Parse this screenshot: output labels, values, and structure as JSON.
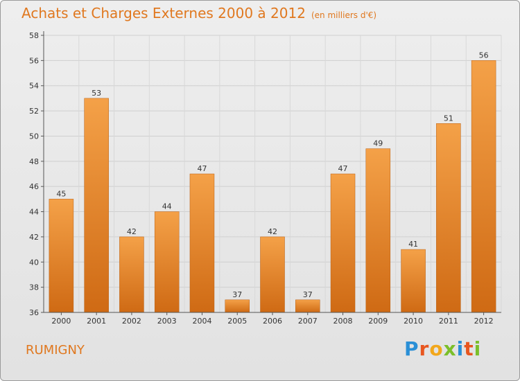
{
  "title": "Achats et Charges Externes 2000 à 2012",
  "subtitle": "(en milliers d'€)",
  "commune": "RUMIGNY",
  "brand": {
    "letters": [
      "P",
      "r",
      "o",
      "x",
      "i",
      "t",
      "i"
    ],
    "colors": [
      "#2a8fd6",
      "#e8561f",
      "#f2a71b",
      "#7bbf2a",
      "#2a8fd6",
      "#e8561f",
      "#7bbf2a"
    ]
  },
  "chart_data": {
    "type": "bar",
    "categories": [
      "2000",
      "2001",
      "2002",
      "2003",
      "2004",
      "2005",
      "2006",
      "2007",
      "2008",
      "2009",
      "2010",
      "2011",
      "2012"
    ],
    "values": [
      45,
      53,
      42,
      44,
      47,
      37,
      42,
      37,
      47,
      49,
      41,
      51,
      56
    ],
    "ylim": [
      36,
      58
    ],
    "yticks": [
      36,
      38,
      40,
      42,
      44,
      46,
      48,
      50,
      52,
      54,
      56,
      58
    ],
    "grid": true,
    "bar_color": "#e8822a"
  }
}
